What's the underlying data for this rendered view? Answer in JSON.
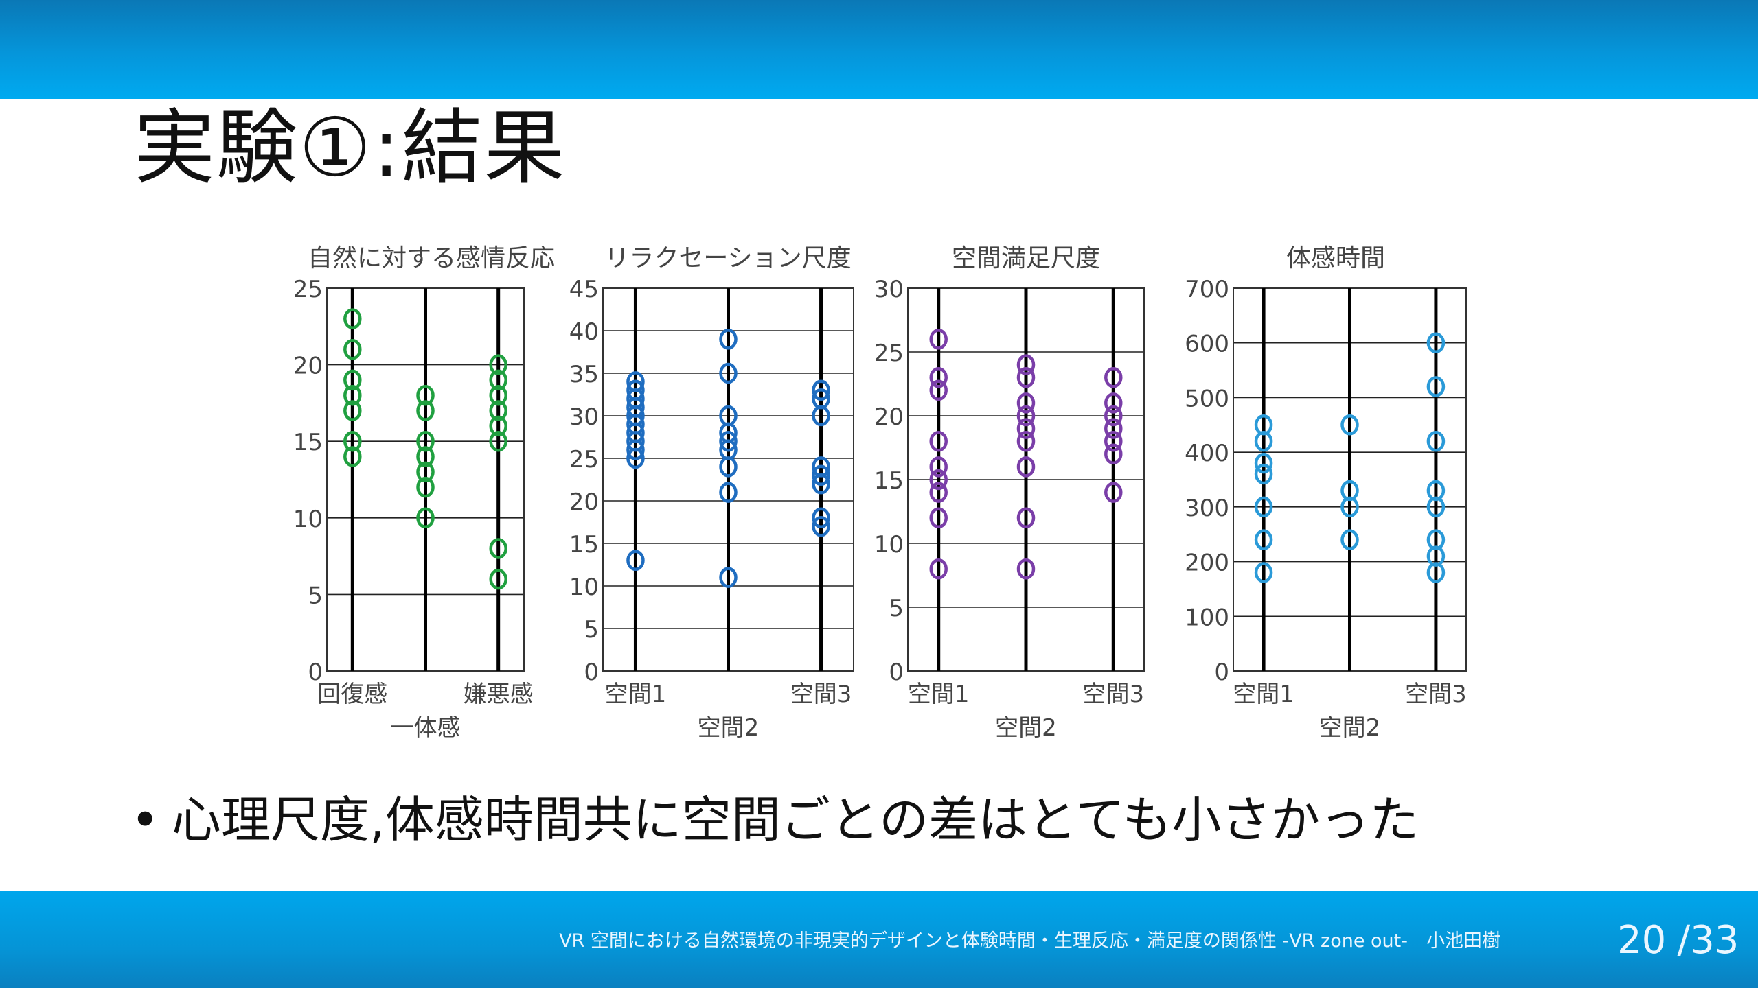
{
  "slide": {
    "title": "実験①:結果",
    "bullet": "心理尺度,体感時間共に空間ごとの差はとても小さかった",
    "footer": "VR 空間における自然環境の非現実的デザインと体験時間・生理反応・満足度の関係性 -VR zone out-　小池田樹",
    "page": {
      "current": "20",
      "total": "33"
    },
    "colors": {
      "bar": "#0596db"
    }
  },
  "chart_data": [
    {
      "type": "scatter",
      "title": "自然に対する感情反応",
      "color": "#20a040",
      "ylim": [
        0,
        25
      ],
      "yticks": [
        0,
        5,
        10,
        15,
        20,
        25
      ],
      "columns": 3,
      "xlabels": [
        {
          "col": 0,
          "row": 0,
          "text": "回復感"
        },
        {
          "col": 2,
          "row": 0,
          "text": "嫌悪感"
        },
        {
          "col": 1,
          "row": 1,
          "text": "一体感"
        }
      ],
      "series": [
        {
          "values": [
            23,
            21,
            19,
            18,
            17,
            15,
            14
          ]
        },
        {
          "values": [
            18,
            17,
            15,
            14,
            13,
            12,
            10
          ]
        },
        {
          "values": [
            20,
            19,
            18,
            17,
            16,
            15,
            8,
            6
          ]
        }
      ],
      "grid": true
    },
    {
      "type": "scatter",
      "title": "リラクセーション尺度",
      "color": "#1f6dc0",
      "ylim": [
        0,
        45
      ],
      "yticks": [
        0,
        5,
        10,
        15,
        20,
        25,
        30,
        35,
        40,
        45
      ],
      "columns": 3,
      "xlabels": [
        {
          "col": 0,
          "row": 0,
          "text": "空間1"
        },
        {
          "col": 2,
          "row": 0,
          "text": "空間3"
        },
        {
          "col": 1,
          "row": 1,
          "text": "空間2"
        }
      ],
      "series": [
        {
          "values": [
            34,
            33,
            32,
            31,
            30,
            29,
            28,
            27,
            26,
            25,
            13
          ]
        },
        {
          "values": [
            39,
            35,
            30,
            28,
            27,
            26,
            24,
            21,
            11
          ]
        },
        {
          "values": [
            33,
            32,
            30,
            24,
            23,
            22,
            18,
            17
          ]
        }
      ],
      "grid": true
    },
    {
      "type": "scatter",
      "title": "空間満足尺度",
      "color": "#7a3ea8",
      "ylim": [
        0,
        30
      ],
      "yticks": [
        0,
        5,
        10,
        15,
        20,
        25,
        30
      ],
      "columns": 3,
      "xlabels": [
        {
          "col": 0,
          "row": 0,
          "text": "空間1"
        },
        {
          "col": 2,
          "row": 0,
          "text": "空間3"
        },
        {
          "col": 1,
          "row": 1,
          "text": "空間2"
        }
      ],
      "series": [
        {
          "values": [
            26,
            23,
            22,
            18,
            16,
            15,
            14,
            12,
            8
          ]
        },
        {
          "values": [
            24,
            23,
            21,
            20,
            19,
            18,
            16,
            12,
            8
          ]
        },
        {
          "values": [
            23,
            21,
            20,
            19,
            18,
            17,
            14
          ]
        }
      ],
      "grid": true
    },
    {
      "type": "scatter",
      "title": "体感時間",
      "color": "#2a9ad8",
      "ylim": [
        0,
        700
      ],
      "yticks": [
        0,
        100,
        200,
        300,
        400,
        500,
        600,
        700
      ],
      "columns": 3,
      "xlabels": [
        {
          "col": 0,
          "row": 0,
          "text": "空間1"
        },
        {
          "col": 2,
          "row": 0,
          "text": "空間3"
        },
        {
          "col": 1,
          "row": 1,
          "text": "空間2"
        }
      ],
      "series": [
        {
          "values": [
            450,
            420,
            380,
            360,
            300,
            240,
            180
          ]
        },
        {
          "values": [
            450,
            330,
            300,
            240
          ]
        },
        {
          "values": [
            600,
            520,
            420,
            330,
            300,
            240,
            210,
            180
          ]
        }
      ],
      "grid": true
    }
  ]
}
